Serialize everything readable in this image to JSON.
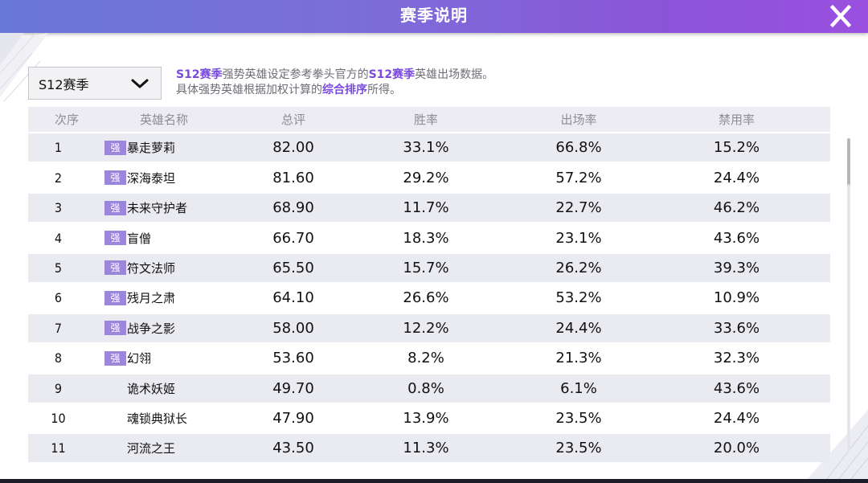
{
  "header": {
    "title": "赛季说明"
  },
  "season_select": {
    "value": "S12赛季"
  },
  "description": {
    "line1_part1": "S12赛季",
    "line1_part2": "强势英雄设定参考拳头官方的",
    "line1_part3": "S12赛季",
    "line1_part4": "英雄出场数据。",
    "line2_part1": "具体强势英雄根据加权计算的",
    "line2_part2": "综合排序",
    "line2_part3": "所得。"
  },
  "table": {
    "headers": {
      "rank": "次序",
      "name": "英雄名称",
      "score": "总评",
      "win_rate": "胜率",
      "pick_rate": "出场率",
      "ban_rate": "禁用率"
    },
    "strong_badge": "强",
    "rows": [
      {
        "rank": "1",
        "strong": true,
        "name": "暴走萝莉",
        "score": "82.00",
        "win_rate": "33.1%",
        "pick_rate": "66.8%",
        "ban_rate": "15.2%"
      },
      {
        "rank": "2",
        "strong": true,
        "name": "深海泰坦",
        "score": "81.60",
        "win_rate": "29.2%",
        "pick_rate": "57.2%",
        "ban_rate": "24.4%"
      },
      {
        "rank": "3",
        "strong": true,
        "name": "未来守护者",
        "score": "68.90",
        "win_rate": "11.7%",
        "pick_rate": "22.7%",
        "ban_rate": "46.2%"
      },
      {
        "rank": "4",
        "strong": true,
        "name": "盲僧",
        "score": "66.70",
        "win_rate": "18.3%",
        "pick_rate": "23.1%",
        "ban_rate": "43.6%"
      },
      {
        "rank": "5",
        "strong": true,
        "name": "符文法师",
        "score": "65.50",
        "win_rate": "15.7%",
        "pick_rate": "26.2%",
        "ban_rate": "39.3%"
      },
      {
        "rank": "6",
        "strong": true,
        "name": "残月之肃",
        "score": "64.10",
        "win_rate": "26.6%",
        "pick_rate": "53.2%",
        "ban_rate": "10.9%"
      },
      {
        "rank": "7",
        "strong": true,
        "name": "战争之影",
        "score": "58.00",
        "win_rate": "12.2%",
        "pick_rate": "24.4%",
        "ban_rate": "33.6%"
      },
      {
        "rank": "8",
        "strong": true,
        "name": "幻翎",
        "score": "53.60",
        "win_rate": "8.2%",
        "pick_rate": "21.3%",
        "ban_rate": "32.3%"
      },
      {
        "rank": "9",
        "strong": false,
        "name": "诡术妖姬",
        "score": "49.70",
        "win_rate": "0.8%",
        "pick_rate": "6.1%",
        "ban_rate": "43.6%"
      },
      {
        "rank": "10",
        "strong": false,
        "name": "魂锁典狱长",
        "score": "47.90",
        "win_rate": "13.9%",
        "pick_rate": "23.5%",
        "ban_rate": "24.4%"
      },
      {
        "rank": "11",
        "strong": false,
        "name": "河流之王",
        "score": "43.50",
        "win_rate": "11.3%",
        "pick_rate": "23.5%",
        "ban_rate": "20.0%"
      }
    ]
  },
  "scroll_position": 0.0
}
